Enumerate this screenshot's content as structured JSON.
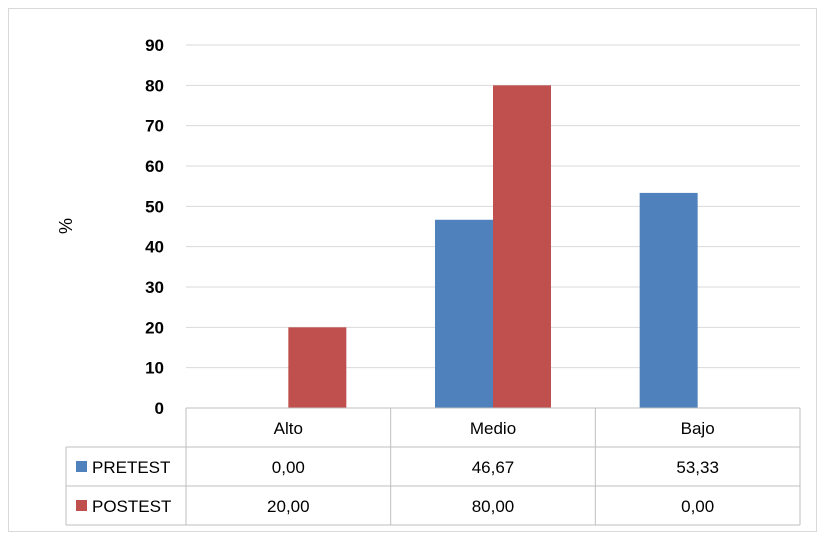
{
  "chart_data": {
    "type": "bar",
    "categories": [
      "Alto",
      "Medio",
      "Bajo"
    ],
    "series": [
      {
        "name": "PRETEST",
        "values": [
          0,
          46.67,
          53.33
        ],
        "labels": [
          "0,00",
          "46,67",
          "53,33"
        ],
        "color": "#4f81bd"
      },
      {
        "name": "POSTEST",
        "values": [
          20,
          80,
          0
        ],
        "labels": [
          "20,00",
          "80,00",
          "0,00"
        ],
        "color": "#c0504d"
      }
    ],
    "ylabel": "%",
    "ylim": [
      0,
      90
    ],
    "yticks": [
      "0",
      "10",
      "20",
      "30",
      "40",
      "50",
      "60",
      "70",
      "80",
      "90"
    ],
    "grid": true,
    "legend": "data-table"
  }
}
